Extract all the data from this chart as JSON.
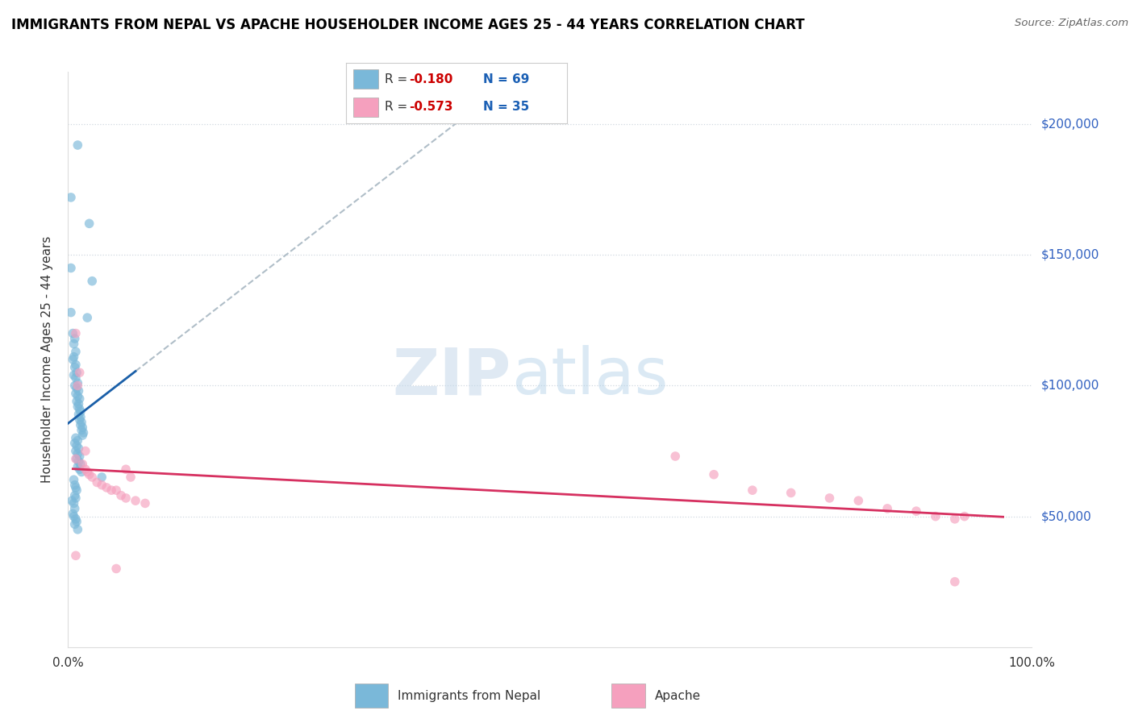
{
  "title": "IMMIGRANTS FROM NEPAL VS APACHE HOUSEHOLDER INCOME AGES 25 - 44 YEARS CORRELATION CHART",
  "source": "Source: ZipAtlas.com",
  "ylabel": "Householder Income Ages 25 - 44 years",
  "legend_nepal": "Immigrants from Nepal",
  "legend_apache": "Apache",
  "r_nepal": "-0.180",
  "n_nepal": "69",
  "r_apache": "-0.573",
  "n_apache": "35",
  "xlim": [
    0.0,
    1.0
  ],
  "ylim": [
    0,
    220000
  ],
  "color_nepal": "#7ab8d9",
  "color_apache": "#f5a0be",
  "color_trend_nepal": "#1a5fa8",
  "color_trend_apache": "#d63060",
  "color_trend_dashed": "#b0bec8",
  "bg": "#ffffff",
  "grid_color": "#d0d8e0",
  "nepal_points": [
    [
      0.01,
      192000
    ],
    [
      0.003,
      172000
    ],
    [
      0.022,
      162000
    ],
    [
      0.003,
      145000
    ],
    [
      0.025,
      140000
    ],
    [
      0.003,
      128000
    ],
    [
      0.02,
      126000
    ],
    [
      0.005,
      120000
    ],
    [
      0.007,
      118000
    ],
    [
      0.006,
      116000
    ],
    [
      0.008,
      113000
    ],
    [
      0.006,
      111000
    ],
    [
      0.005,
      110000
    ],
    [
      0.008,
      108000
    ],
    [
      0.007,
      107000
    ],
    [
      0.009,
      105000
    ],
    [
      0.006,
      104000
    ],
    [
      0.008,
      103000
    ],
    [
      0.01,
      101000
    ],
    [
      0.007,
      100000
    ],
    [
      0.009,
      99000
    ],
    [
      0.011,
      98000
    ],
    [
      0.008,
      97000
    ],
    [
      0.01,
      96000
    ],
    [
      0.012,
      95000
    ],
    [
      0.009,
      94000
    ],
    [
      0.011,
      93000
    ],
    [
      0.01,
      92000
    ],
    [
      0.012,
      91000
    ],
    [
      0.013,
      90000
    ],
    [
      0.011,
      89000
    ],
    [
      0.013,
      88000
    ],
    [
      0.012,
      87000
    ],
    [
      0.014,
      86000
    ],
    [
      0.013,
      85000
    ],
    [
      0.015,
      84000
    ],
    [
      0.014,
      83000
    ],
    [
      0.016,
      82000
    ],
    [
      0.015,
      81000
    ],
    [
      0.008,
      80000
    ],
    [
      0.01,
      79000
    ],
    [
      0.007,
      78000
    ],
    [
      0.009,
      77000
    ],
    [
      0.011,
      76000
    ],
    [
      0.008,
      75000
    ],
    [
      0.01,
      74000
    ],
    [
      0.012,
      73000
    ],
    [
      0.009,
      72000
    ],
    [
      0.011,
      71000
    ],
    [
      0.013,
      70000
    ],
    [
      0.01,
      69000
    ],
    [
      0.012,
      68000
    ],
    [
      0.014,
      67000
    ],
    [
      0.035,
      65000
    ],
    [
      0.006,
      64000
    ],
    [
      0.007,
      62000
    ],
    [
      0.008,
      61000
    ],
    [
      0.009,
      60000
    ],
    [
      0.007,
      58000
    ],
    [
      0.008,
      57000
    ],
    [
      0.004,
      56000
    ],
    [
      0.006,
      55000
    ],
    [
      0.007,
      53000
    ],
    [
      0.005,
      51000
    ],
    [
      0.006,
      50000
    ],
    [
      0.008,
      49000
    ],
    [
      0.009,
      48000
    ],
    [
      0.007,
      47000
    ],
    [
      0.01,
      45000
    ]
  ],
  "apache_points": [
    [
      0.008,
      120000
    ],
    [
      0.012,
      105000
    ],
    [
      0.01,
      100000
    ],
    [
      0.008,
      72000
    ],
    [
      0.015,
      70000
    ],
    [
      0.018,
      68000
    ],
    [
      0.02,
      67000
    ],
    [
      0.022,
      66000
    ],
    [
      0.025,
      65000
    ],
    [
      0.03,
      63000
    ],
    [
      0.035,
      62000
    ],
    [
      0.04,
      61000
    ],
    [
      0.045,
      60000
    ],
    [
      0.05,
      60000
    ],
    [
      0.055,
      58000
    ],
    [
      0.06,
      57000
    ],
    [
      0.07,
      56000
    ],
    [
      0.08,
      55000
    ],
    [
      0.018,
      75000
    ],
    [
      0.06,
      68000
    ],
    [
      0.065,
      65000
    ],
    [
      0.05,
      30000
    ],
    [
      0.008,
      35000
    ],
    [
      0.63,
      73000
    ],
    [
      0.67,
      66000
    ],
    [
      0.71,
      60000
    ],
    [
      0.75,
      59000
    ],
    [
      0.79,
      57000
    ],
    [
      0.82,
      56000
    ],
    [
      0.85,
      53000
    ],
    [
      0.88,
      52000
    ],
    [
      0.9,
      50000
    ],
    [
      0.92,
      49000
    ],
    [
      0.93,
      50000
    ],
    [
      0.92,
      25000
    ]
  ]
}
